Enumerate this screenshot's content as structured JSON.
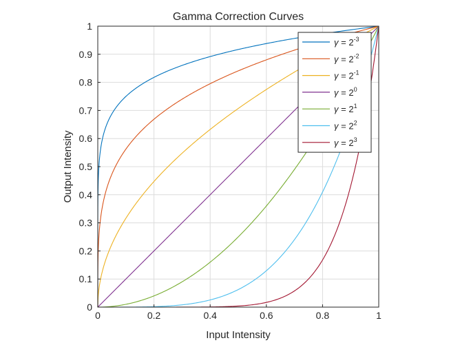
{
  "chart_data": {
    "type": "line",
    "title": "Gamma Correction Curves",
    "xlabel": "Input Intensity",
    "ylabel": "Output Intensity",
    "xlim": [
      0,
      1
    ],
    "ylim": [
      0,
      1
    ],
    "grid": true,
    "legend_position": "top-right",
    "x_ticks": [
      "0",
      "0.2",
      "0.4",
      "0.6",
      "0.8",
      "1"
    ],
    "y_ticks": [
      "0",
      "0.1",
      "0.2",
      "0.3",
      "0.4",
      "0.5",
      "0.6",
      "0.7",
      "0.8",
      "0.9",
      "1"
    ],
    "x_tick_values": [
      0,
      0.2,
      0.4,
      0.6,
      0.8,
      1
    ],
    "y_tick_values": [
      0,
      0.1,
      0.2,
      0.3,
      0.4,
      0.5,
      0.6,
      0.7,
      0.8,
      0.9,
      1
    ],
    "function": "y = x^gamma",
    "series": [
      {
        "symbol": "γ",
        "base": "2",
        "exponent": "-3",
        "gamma": 0.125,
        "color": "#0072BD"
      },
      {
        "symbol": "γ",
        "base": "2",
        "exponent": "-2",
        "gamma": 0.25,
        "color": "#D95319"
      },
      {
        "symbol": "γ",
        "base": "2",
        "exponent": "-1",
        "gamma": 0.5,
        "color": "#EDB120"
      },
      {
        "symbol": "γ",
        "base": "2",
        "exponent": "0",
        "gamma": 1,
        "color": "#7E2F8E"
      },
      {
        "symbol": "γ",
        "base": "2",
        "exponent": "1",
        "gamma": 2,
        "color": "#77AC30"
      },
      {
        "symbol": "γ",
        "base": "2",
        "exponent": "2",
        "gamma": 4,
        "color": "#4DBEEE"
      },
      {
        "symbol": "γ",
        "base": "2",
        "exponent": "3",
        "gamma": 8,
        "color": "#A2142F"
      }
    ]
  }
}
